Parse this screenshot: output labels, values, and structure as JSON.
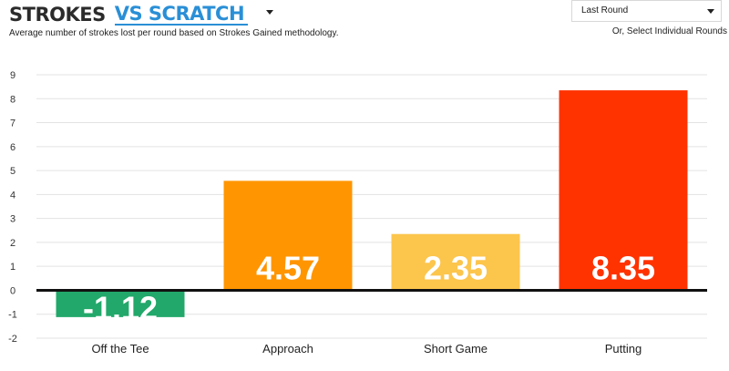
{
  "header": {
    "title_primary": "STROKES",
    "title_accent": "VS SCRATCH",
    "subtitle": "Average number of strokes lost per round based on Strokes Gained methodology.",
    "round_select_value": "Last Round",
    "select_hint": "Or, Select Individual Rounds"
  },
  "colors": {
    "accent": "#2a8fd6",
    "grid": "#e3e3e3",
    "zero_line": "#111111"
  },
  "chart_data": {
    "type": "bar",
    "categories": [
      "Off the Tee",
      "Approach",
      "Short Game",
      "Putting"
    ],
    "values": [
      -1.12,
      4.57,
      2.35,
      8.35
    ],
    "labels": [
      "-1.12",
      "4.57",
      "2.35",
      "8.35"
    ],
    "colors": [
      "#22a86a",
      "#ff9500",
      "#fcc54c",
      "#ff3300"
    ],
    "ylim": [
      -2,
      9
    ],
    "yticks": [
      9,
      8,
      7,
      6,
      5,
      4,
      3,
      2,
      1,
      0,
      -1,
      -2
    ],
    "grid": true
  }
}
